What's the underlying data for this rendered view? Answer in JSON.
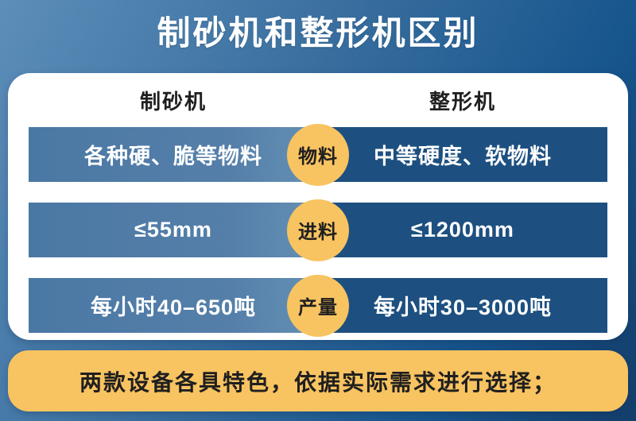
{
  "title": "制砂机和整形机区别",
  "colors": {
    "background_gradient_start": "#5d8eba",
    "background_gradient_end": "#143e6b",
    "card_background": "#ffffff",
    "bar_left_blue": "#4d7ba7",
    "bar_right_blue": "#1d5080",
    "badge_yellow": "#f8c361",
    "footer_yellow": "#f8c361",
    "bar_text": "#ffffff",
    "dark_text": "#1f1f1f"
  },
  "table": {
    "columns": [
      "制砂机",
      "整形机"
    ],
    "rows": [
      {
        "label": "物料",
        "left": "各种硬、脆等物料",
        "right": "中等硬度、软物料"
      },
      {
        "label": "进料",
        "left": "≤55mm",
        "right": "≤1200mm"
      },
      {
        "label": "产量",
        "left": "每小时40–650吨",
        "right": "每小时30–3000吨"
      }
    ]
  },
  "footer": {
    "note": "两款设备各具特色，依据实际需求进行选择；"
  }
}
